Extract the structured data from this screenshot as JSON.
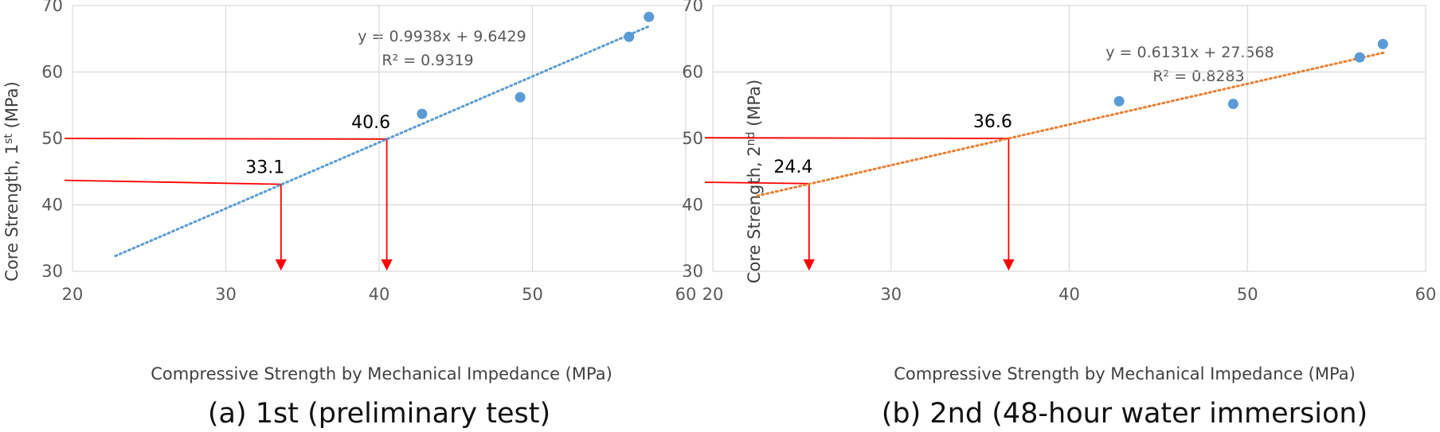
{
  "chart_data": [
    {
      "type": "scatter",
      "caption": "(a) 1st (preliminary test)",
      "xlabel": "Compressive Strength by Mechanical Impedance (MPa)",
      "ylabel_main": "Core Strength, 1",
      "ylabel_sup": "st",
      "ylabel_unit": " (MPa)",
      "xlim": [
        20,
        60
      ],
      "ylim": [
        30,
        70
      ],
      "xticks": [
        "20",
        "30",
        "40",
        "50",
        "60"
      ],
      "yticks": [
        "30",
        "40",
        "50",
        "60",
        "70"
      ],
      "grid": true,
      "marker_color": "#5B9BD5",
      "trend_color": "#5B9BD5",
      "points": [
        {
          "x": 42.8,
          "y": 53.7
        },
        {
          "x": 49.2,
          "y": 56.2
        },
        {
          "x": 56.3,
          "y": 65.3
        },
        {
          "x": 57.6,
          "y": 68.3
        }
      ],
      "trendline": {
        "slope": 0.9938,
        "intercept": 9.6429,
        "x_start": 22.8,
        "x_end": 57.7
      },
      "equation": "y = 0.9938x + 9.6429",
      "r2": "R² = 0.9319",
      "annotations": [
        {
          "label": "33.1",
          "x": 33.6,
          "y": 43.1,
          "hline_y": 43.7
        },
        {
          "label": "40.6",
          "x": 40.5,
          "y": 49.9,
          "hline_y": 50.0
        }
      ]
    },
    {
      "type": "scatter",
      "caption": "(b) 2nd (48-hour water immersion)",
      "xlabel": "Compressive Strength by Mechanical Impedance (MPa)",
      "ylabel_main": "Core Strength, 2",
      "ylabel_sup": "nd",
      "ylabel_unit": " (MPa)",
      "xlim": [
        20,
        60
      ],
      "ylim": [
        30,
        70
      ],
      "xticks": [
        "20",
        "30",
        "40",
        "50",
        "60"
      ],
      "yticks": [
        "30",
        "40",
        "50",
        "60",
        "70"
      ],
      "grid": true,
      "marker_color": "#5B9BD5",
      "trend_color": "#ED7D31",
      "points": [
        {
          "x": 42.8,
          "y": 55.6
        },
        {
          "x": 49.2,
          "y": 55.2
        },
        {
          "x": 56.3,
          "y": 62.2
        },
        {
          "x": 57.6,
          "y": 64.2
        }
      ],
      "trendline": {
        "slope": 0.6131,
        "intercept": 27.568,
        "x_start": 22.5,
        "x_end": 57.7
      },
      "equation": "y = 0.6131x + 27.568",
      "r2": "R² = 0.8283",
      "annotations": [
        {
          "label": "24.4",
          "x": 25.4,
          "y": 43.2,
          "hline_y": 43.4
        },
        {
          "label": "36.6",
          "x": 36.6,
          "y": 50.0,
          "hline_y": 50.1
        }
      ]
    }
  ]
}
